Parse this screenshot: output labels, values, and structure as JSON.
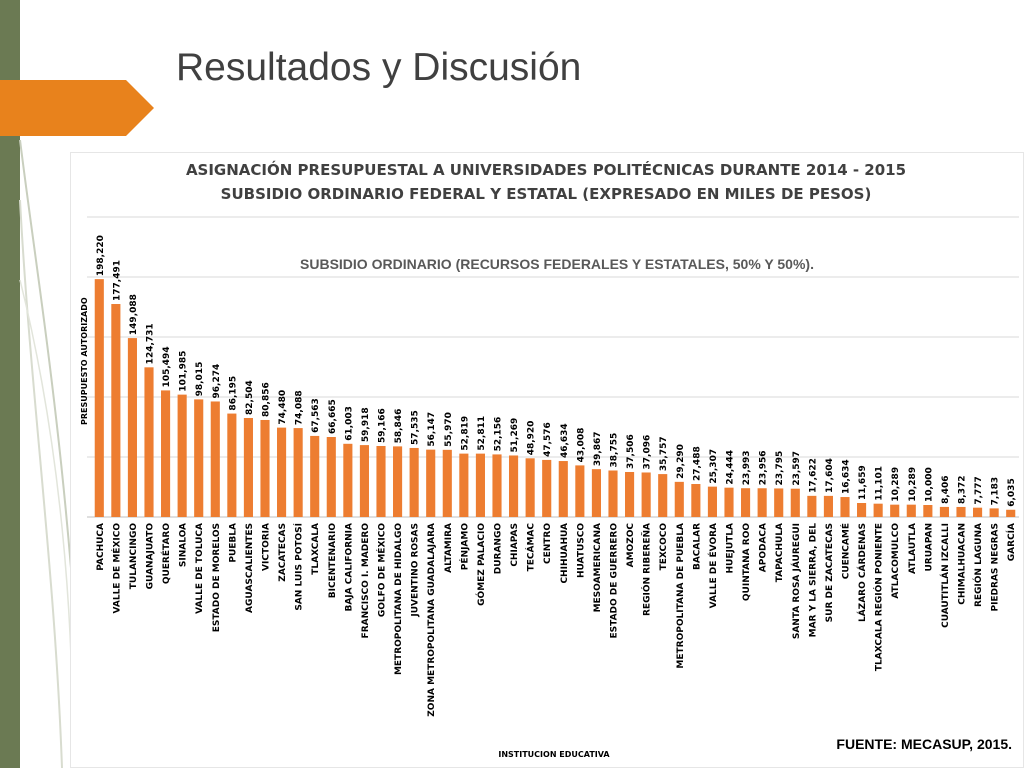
{
  "slide": {
    "title": "Resultados y Discusión",
    "source": "FUENTE: MECASUP, 2015."
  },
  "colors": {
    "bar": "#ed7d31",
    "accent_bar": "#e8821c",
    "left_strip": "#6b7a53",
    "gridline": "#d9d9d9"
  },
  "chart_data": {
    "type": "bar",
    "title": "ASIGNACIÓN PRESUPUESTAL A UNIVERSIDADES POLITÉCNICAS DURANTE 2014 - 2015",
    "subtitle": "SUBSIDIO ORDINARIO FEDERAL Y ESTATAL (EXPRESADO EN MILES DE PESOS)",
    "annotation": "SUBSIDIO ORDINARIO (RECURSOS FEDERALES Y ESTATALES, 50% Y 50%).",
    "xlabel": "INSTITUCION EDUCATIVA",
    "ylabel": "PRESUPUESTO AUTORIZADO",
    "ylim": [
      0,
      250000
    ],
    "grid": true,
    "categories": [
      "PACHUCA",
      "VALLE DE MÉXICO",
      "TULANCINGO",
      "GUANAJUATO",
      "QUERÉTARO",
      "SINALOA",
      "VALLE DE TOLUCA",
      "ESTADO DE MORELOS",
      "PUEBLA",
      "AGUASCALIENTES",
      "VICTORIA",
      "ZACATECAS",
      "SAN LUIS POTOSÍ",
      "TLAXCALA",
      "BICENTENARIO",
      "BAJA CALIFORNIA",
      "FRANCISCO I. MADERO",
      "GOLFO DE MÉXICO",
      "METROPOLITANA DE HIDALGO",
      "JUVENTINO ROSAS",
      "ZONA METROPOLITANA GUADALAJARA",
      "ALTAMIRA",
      "PÉNJAMO",
      "GÓMEZ PALACIO",
      "DURANGO",
      "CHIAPAS",
      "TECÁMAC",
      "CENTRO",
      "CHIHUAHUA",
      "HUATUSCO",
      "MESOAMERICANA",
      "ESTADO DE GUERRERO",
      "AMOZOC",
      "REGIÓN RIBEREÑA",
      "TEXCOCO",
      "METROPOLITANA DE PUEBLA",
      "BACALAR",
      "VALLE DE ÉVORA",
      "HUEJUTLA",
      "QUINTANA ROO",
      "APODACA",
      "TAPACHULA",
      "SANTA ROSA JÁUREGUI",
      "MAR Y LA SIERRA, DEL",
      "SUR DE ZACATECAS",
      "CUENCAMÉ",
      "LÁZARO CÁRDENAS",
      "TLAXCALA REGIÓN PONIENTE",
      "ATLACOMULCO",
      "ATLAUTLA",
      "URUAPAN",
      "CUAUTITLÁN IZCALLI",
      "CHIMALHUACAN",
      "REGIÓN LAGUNA",
      "PIEDRAS NEGRAS",
      "GARCÍA"
    ],
    "value_labels": [
      "198,220",
      "177,491",
      "149,088",
      "124,731",
      "105,494",
      "101,985",
      "98,015",
      "96,274",
      "86,195",
      "82,504",
      "80,856",
      "74,480",
      "74,088",
      "67,563",
      "66,665",
      "61,003",
      "59,918",
      "59,166",
      "58,846",
      "57,535",
      "56,147",
      "55,970",
      "52,819",
      "52,811",
      "52,156",
      "51,269",
      "48,920",
      "47,576",
      "46,634",
      "43,008",
      "39,867",
      "38,755",
      "37,506",
      "37,096",
      "35,757",
      "29,290",
      "27,488",
      "25,307",
      "24,444",
      "23,993",
      "23,956",
      "23,795",
      "23,597",
      "17,622",
      "17,604",
      "16,634",
      "11,659",
      "11,101",
      "10,289",
      "10,289",
      "10,000",
      "8,406",
      "8,372",
      "7,777",
      "7,183",
      "6,035"
    ],
    "values": [
      198220,
      177491,
      149088,
      124731,
      105494,
      101985,
      98015,
      96274,
      86195,
      82504,
      80856,
      74480,
      74088,
      67563,
      66665,
      61003,
      59918,
      59166,
      58846,
      57535,
      56147,
      55970,
      52819,
      52811,
      52156,
      51269,
      48920,
      47576,
      46634,
      43008,
      39867,
      38755,
      37506,
      37096,
      35757,
      29290,
      27488,
      25307,
      24444,
      23993,
      23956,
      23795,
      23597,
      17622,
      17604,
      16634,
      11659,
      11101,
      10289,
      10289,
      10000,
      8406,
      8372,
      7777,
      7183,
      6035
    ]
  }
}
